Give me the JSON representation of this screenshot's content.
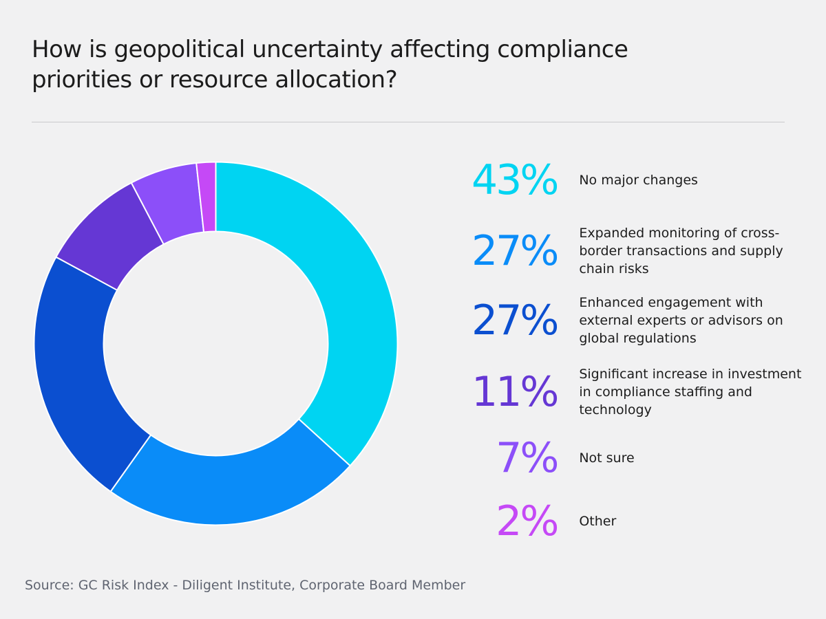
{
  "title": "How is geopolitical uncertainty affecting compliance priorities or resource allocation?",
  "source": "Source: GC Risk Index - Diligent Institute, Corporate Board Member",
  "chart_data": {
    "type": "pie",
    "variant": "donut",
    "title": "How is geopolitical uncertainty affecting compliance priorities or resource allocation?",
    "slices": [
      {
        "label": "No major changes",
        "display": "43%",
        "value": 43,
        "color": "#00d4f2"
      },
      {
        "label": "Expanded monitoring of cross-border transactions and supply chain risks",
        "display": "27%",
        "value": 27,
        "color": "#0a8cf8"
      },
      {
        "label": "Enhanced engagement with external experts or advisors on global regulations",
        "display": "27%",
        "value": 27,
        "color": "#0b4fd0"
      },
      {
        "label": "Significant increase in investment in compliance staffing and technology",
        "display": "11%",
        "value": 11,
        "color": "#6537d4"
      },
      {
        "label": "Not sure",
        "display": "7%",
        "value": 7,
        "color": "#8c4ff9"
      },
      {
        "label": "Other",
        "display": "2%",
        "value": 2,
        "color": "#c549f6"
      }
    ],
    "legend_position": "right",
    "start_angle": "top",
    "direction": "clockwise"
  }
}
